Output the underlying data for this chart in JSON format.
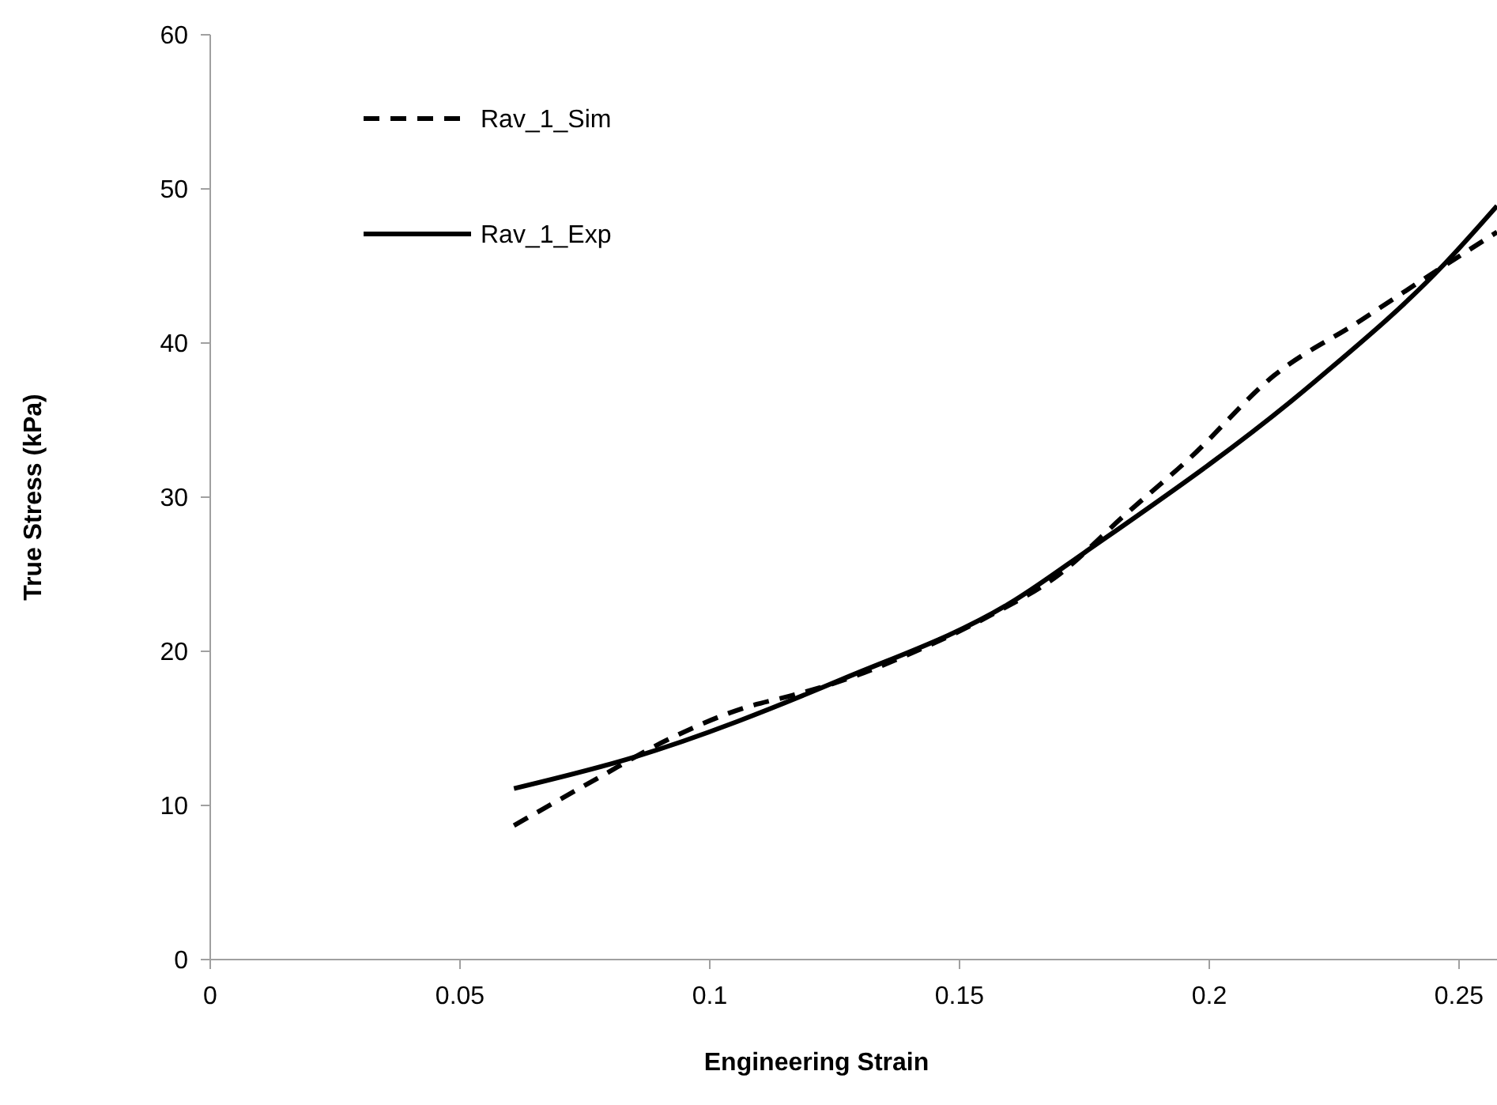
{
  "chart_data": {
    "type": "line",
    "xlabel": "Engineering Strain",
    "ylabel": "True Stress (kPa)",
    "xlim": [
      0,
      0.2576
    ],
    "xticks": [
      0,
      0.05,
      0.1,
      0.15,
      0.2,
      0.25
    ],
    "ylim": [
      0,
      60
    ],
    "yticks": [
      0,
      10,
      20,
      30,
      40,
      50,
      60
    ],
    "grid": false,
    "legend": "top left",
    "marker": "none",
    "series": [
      {
        "name": "Rav_1_Sim",
        "color": "#000000",
        "line_style": "dashed",
        "x": [
          0.0608,
          0.0772,
          0.0918,
          0.1076,
          0.116,
          0.1256,
          0.1405,
          0.156,
          0.17,
          0.1826,
          0.196,
          0.213,
          0.23,
          0.2427,
          0.2576
        ],
        "values": [
          8.7,
          11.7,
          14.3,
          16.4,
          17.1,
          18.0,
          19.9,
          22.3,
          25.0,
          28.7,
          32.5,
          37.9,
          41.4,
          44.1,
          47.2
        ]
      },
      {
        "name": "Rav_1_Exp",
        "color": "#000000",
        "line_style": "solid",
        "x": [
          0.0608,
          0.0845,
          0.1266,
          0.161,
          0.175,
          0.2215,
          0.247,
          0.2576
        ],
        "values": [
          11.1,
          13.1,
          18.2,
          23.3,
          26.4,
          37.6,
          45.1,
          48.9
        ]
      }
    ]
  }
}
